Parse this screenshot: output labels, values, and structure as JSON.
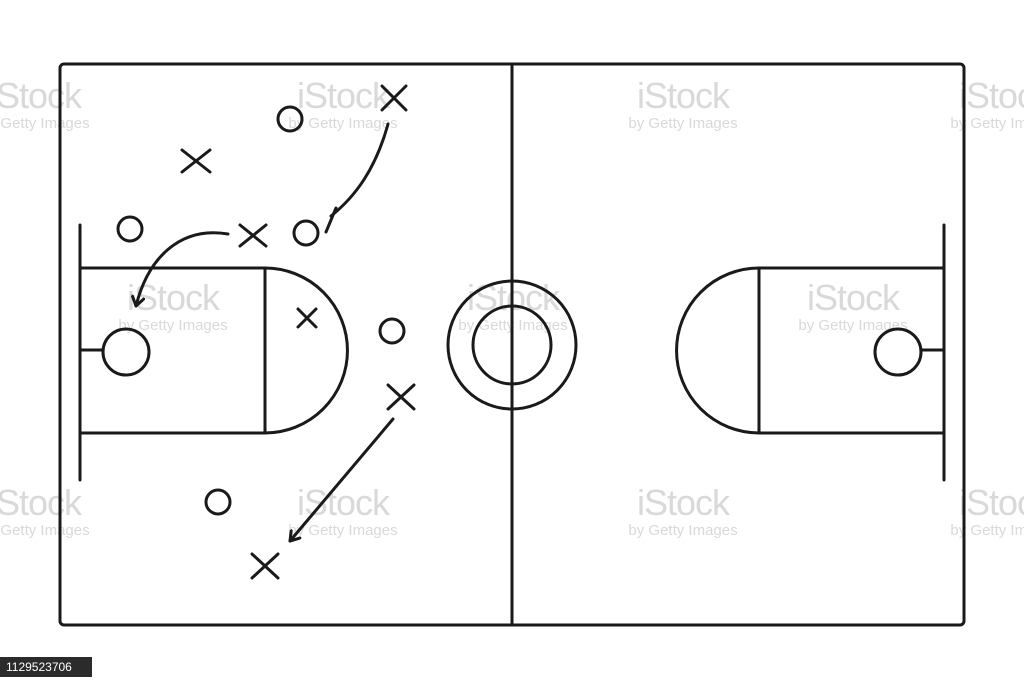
{
  "diagram": {
    "type": "basketball-play-diagram",
    "line_color": "#1a1a1a",
    "background": "#ffffff"
  },
  "watermark": {
    "logo_text": "iStock",
    "credit_text": "by Getty Images",
    "color": "#d9d9d9"
  },
  "image_id": "1129523706"
}
